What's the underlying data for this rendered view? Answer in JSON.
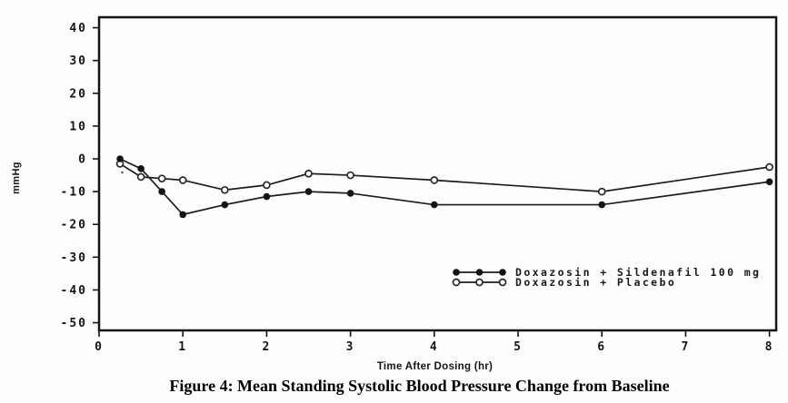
{
  "chart_data": {
    "type": "line",
    "title": "Figure 4: Mean Standing Systolic Blood Pressure Change from Baseline",
    "xlabel": "Time After Dosing (hr)",
    "ylabel": "mmHg",
    "xlim": [
      0,
      8
    ],
    "ylim": [
      -50,
      40
    ],
    "xticks": [
      0,
      1,
      2,
      3,
      4,
      5,
      6,
      7,
      8
    ],
    "yticks": [
      40,
      30,
      20,
      10,
      0,
      -10,
      -20,
      -30,
      -40,
      -50
    ],
    "grid": false,
    "legend_position": "inside-bottom-right",
    "line_color": "#1c1c1c",
    "x": [
      0.25,
      0.5,
      0.75,
      1,
      1.5,
      2,
      2.5,
      3,
      4,
      6,
      8
    ],
    "series": [
      {
        "name": "Doxazosin + Sildenafil 100 mg",
        "marker": "filled-circle",
        "values": [
          0,
          -3,
          -10,
          -17,
          -14,
          -11.5,
          -10,
          -10.5,
          -14,
          -14,
          -7
        ]
      },
      {
        "name": "Doxazosin + Placebo",
        "marker": "open-circle",
        "values": [
          -1.5,
          -5.5,
          -6,
          -6.5,
          -9.5,
          -8,
          -4.5,
          -5,
          -6.5,
          -10,
          -2.5
        ]
      }
    ]
  }
}
